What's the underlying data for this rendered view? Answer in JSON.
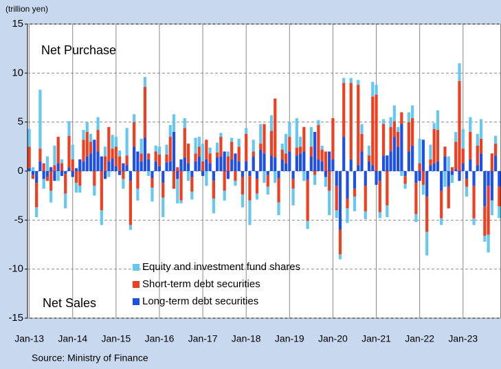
{
  "chart_data": {
    "type": "bar",
    "stacked": true,
    "unit_label": "(trillion yen)",
    "annotations": [
      "Net Purchase",
      "Net Sales"
    ],
    "source": "Source: Ministry of Finance",
    "categories": [
      "Jan-13",
      null,
      null,
      null,
      null,
      null,
      null,
      null,
      null,
      null,
      null,
      null,
      "Jan-14",
      null,
      null,
      null,
      null,
      null,
      null,
      null,
      null,
      null,
      null,
      null,
      "Jan-15",
      null,
      null,
      null,
      null,
      null,
      null,
      null,
      null,
      null,
      null,
      null,
      "Jan-16",
      null,
      null,
      null,
      null,
      null,
      null,
      null,
      null,
      null,
      null,
      null,
      "Jan-17",
      null,
      null,
      null,
      null,
      null,
      null,
      null,
      null,
      null,
      null,
      null,
      "Jan-18",
      null,
      null,
      null,
      null,
      null,
      null,
      null,
      null,
      null,
      null,
      null,
      "Jan-19",
      null,
      null,
      null,
      null,
      null,
      null,
      null,
      null,
      null,
      null,
      null,
      "Jan-20",
      null,
      null,
      null,
      null,
      null,
      null,
      null,
      null,
      null,
      null,
      null,
      "Jan-21",
      null,
      null,
      null,
      null,
      null,
      null,
      null,
      null,
      null,
      null,
      null,
      "Jan-22",
      null,
      null,
      null,
      null,
      null,
      null,
      null,
      null,
      null,
      null,
      null,
      "Jan-23",
      null,
      null,
      null,
      null,
      null,
      null,
      null,
      null,
      null,
      null
    ],
    "series": [
      {
        "name": "Long-term debt securities",
        "color": "#1c50e6",
        "values": [
          0.3,
          -0.4,
          -1.2,
          1.0,
          -0.8,
          -0.6,
          0.4,
          -1.0,
          0.8,
          -0.5,
          -0.3,
          0.4,
          -0.6,
          0.3,
          1.2,
          1.0,
          1.5,
          1.8,
          3.2,
          2.0,
          1.5,
          -0.8,
          1.0,
          1.3,
          0.5,
          -0.4,
          0.8,
          0.6,
          -1.0,
          2.5,
          2.0,
          1.0,
          3.4,
          1.2,
          -0.7,
          1.0,
          0.5,
          -1.2,
          0.9,
          1.0,
          4.0,
          -0.8,
          1.2,
          1.4,
          0.8,
          -0.6,
          1.0,
          1.5,
          -0.5,
          1.2,
          0.8,
          -1.0,
          1.4,
          1.5,
          2.0,
          -0.8,
          1.2,
          1.8,
          1.0,
          -0.6,
          1.0,
          -0.5,
          1.5,
          -0.8,
          2.2,
          1.8,
          -0.4,
          1.6,
          1.4,
          -0.7,
          1.2,
          0.8,
          2.0,
          -0.8,
          1.6,
          1.8,
          2.0,
          -0.9,
          1.5,
          4.0,
          1.2,
          1.0,
          -0.6,
          2.0,
          1.2,
          -1.5,
          -6.0,
          3.5,
          -2.8,
          1.2,
          -1.8,
          0.6,
          2.0,
          -1.5,
          1.0,
          0.6,
          -1.4,
          -1.0,
          1.6,
          1.6,
          2.0,
          3.5,
          2.5,
          4.8,
          -0.5,
          2.0,
          2.6,
          -1.2,
          -1.0,
          3.2,
          -2.6,
          0.6,
          0.8,
          1.0,
          -2.0,
          1.5,
          -1.6,
          -0.4,
          0.2,
          -1.0,
          0.8,
          -0.8,
          1.2,
          -1.5,
          0.6,
          1.8,
          -3.6,
          -1.5,
          -3.0,
          1.6,
          -1.6
        ]
      },
      {
        "name": "Short-term debt securities",
        "color": "#ee4020",
        "values": [
          2.2,
          -0.4,
          -2.5,
          1.3,
          0.8,
          -0.4,
          -2.0,
          0.6,
          2.7,
          0.8,
          -2.0,
          3.2,
          1.2,
          -1.2,
          -1.5,
          2.2,
          2.5,
          1.2,
          -1.5,
          2.2,
          -4.0,
          1.5,
          3.5,
          1.0,
          2.0,
          1.5,
          -0.8,
          1.0,
          -4.5,
          2.5,
          -1.8,
          0.8,
          5.2,
          0.6,
          -1.0,
          1.0,
          1.2,
          -1.5,
          0.8,
          2.5,
          -1.8,
          0.4,
          -3.0,
          3.0,
          2.0,
          -1.5,
          0.8,
          1.0,
          1.0,
          2.0,
          1.0,
          -1.8,
          0.5,
          2.0,
          -2.0,
          1.5,
          1.8,
          -1.0,
          1.5,
          -1.8,
          2.8,
          -2.5,
          0.5,
          -1.5,
          0.6,
          3.0,
          -1.2,
          2.5,
          6.0,
          -2.5,
          1.0,
          1.0,
          1.5,
          -1.0,
          0.8,
          0.7,
          2.5,
          -4.2,
          1.0,
          -0.4,
          3.5,
          1.2,
          2.0,
          -2.0,
          4.2,
          -2.5,
          -2.5,
          5.5,
          -1.0,
          7.8,
          -0.8,
          8.2,
          1.8,
          -2.6,
          0.6,
          7.0,
          7.8,
          -3.2,
          3.2,
          -3.5,
          2.5,
          1.6,
          1.5,
          1.2,
          -0.8,
          3.0,
          2.8,
          -3.2,
          0.8,
          -1.4,
          -3.6,
          0.6,
          3.5,
          3.2,
          -2.8,
          1.0,
          -2.2,
          0.4,
          2.8,
          9.2,
          1.5,
          -0.8,
          2.8,
          -3.3,
          2.0,
          1.5,
          -3.0,
          -5.0,
          1.8,
          1.2,
          -2.0
        ]
      },
      {
        "name": "Equity and investment fund shares",
        "color": "#66c8f0",
        "values": [
          1.8,
          0.4,
          -1.0,
          6.0,
          -1.0,
          1.5,
          -1.2,
          2.0,
          -1.0,
          0.4,
          -1.5,
          1.5,
          1.5,
          -1.0,
          -0.7,
          1.0,
          1.0,
          0.8,
          -1.0,
          1.3,
          -1.5,
          1.0,
          -0.6,
          1.4,
          1.0,
          0.6,
          -1.0,
          2.8,
          -0.5,
          0.8,
          -1.2,
          1.5,
          1.0,
          -0.5,
          -1.4,
          0.6,
          0.8,
          -2.0,
          1.0,
          1.2,
          1.8,
          -2.5,
          -0.3,
          1.0,
          -1.0,
          -0.8,
          1.6,
          1.0,
          1.8,
          -1.5,
          0.6,
          -1.5,
          1.0,
          0.4,
          -1.0,
          0.5,
          0.4,
          -0.5,
          0.8,
          -1.3,
          0.6,
          -2.5,
          1.2,
          -0.6,
          2.0,
          -1.2,
          -0.8,
          1.6,
          -1.2,
          -1.3,
          0.6,
          2.0,
          1.5,
          -1.7,
          3.0,
          1.0,
          -1.0,
          -0.8,
          2.0,
          -1.0,
          0.5,
          0.4,
          -1.0,
          -2.5,
          0.0,
          -0.8,
          -0.5,
          0.5,
          -1.5,
          0.5,
          -1.5,
          0.5,
          1.0,
          -0.8,
          1.0,
          1.5,
          1.0,
          -0.6,
          0.5,
          -1.2,
          1.0,
          1.6,
          0.5,
          -0.5,
          -0.5,
          1.0,
          1.3,
          -0.8,
          2.5,
          -1.0,
          -2.4,
          1.5,
          0.6,
          2.0,
          -0.7,
          -1.6,
          1.5,
          -0.8,
          1.0,
          1.8,
          2.0,
          -1.0,
          1.5,
          -0.7,
          1.2,
          2.0,
          -0.6,
          -1.8,
          -1.5,
          0.8,
          -1.2
        ]
      }
    ],
    "legend_order": [
      2,
      1,
      0
    ],
    "ylim": [
      -15,
      15
    ],
    "yticks": [
      -15,
      -10,
      -5,
      0,
      5,
      10,
      15
    ],
    "grid": true
  }
}
